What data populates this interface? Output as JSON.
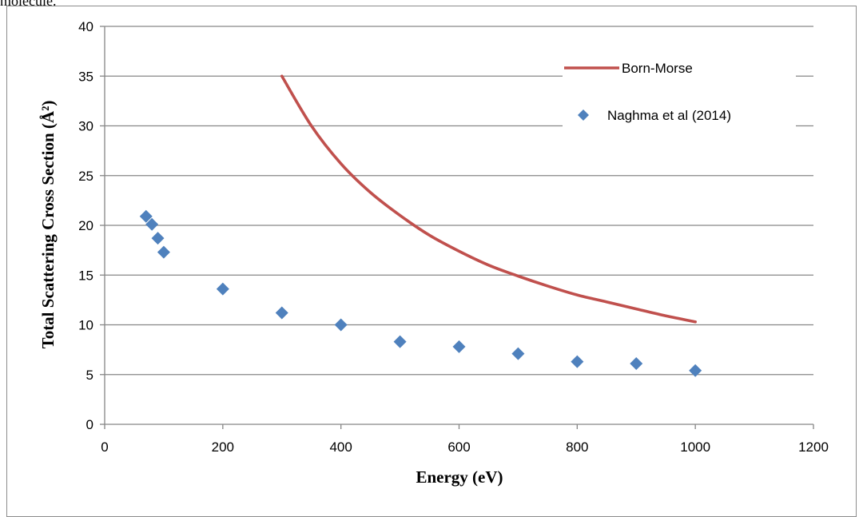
{
  "caption_fragment": "molecule.",
  "chart_data": {
    "type": "scatter",
    "xlabel": "Energy (eV)",
    "ylabel": "Total Scattering Cross Section (Å²)",
    "xlim": [
      0,
      1200
    ],
    "ylim": [
      0,
      40
    ],
    "xticks": [
      0,
      200,
      400,
      600,
      800,
      1000,
      1200
    ],
    "yticks": [
      0,
      5,
      10,
      15,
      20,
      25,
      30,
      35,
      40
    ],
    "grid": "horizontal",
    "legend_position": "top-right",
    "series": [
      {
        "name": "Born-Morse",
        "kind": "line",
        "color": "#c0504d",
        "x": [
          300,
          350,
          400,
          450,
          500,
          550,
          600,
          650,
          700,
          750,
          800,
          850,
          900,
          950,
          1000
        ],
        "y": [
          35,
          30,
          26.2,
          23.3,
          21,
          19,
          17.4,
          16,
          14.9,
          13.9,
          13,
          12.3,
          11.6,
          10.9,
          10.3
        ]
      },
      {
        "name": "Naghma et al (2014)",
        "kind": "scatter",
        "marker": "diamond",
        "color": "#4f81bd",
        "x": [
          70,
          80,
          90,
          100,
          200,
          300,
          400,
          500,
          600,
          700,
          800,
          900,
          1000
        ],
        "y": [
          20.9,
          20.1,
          18.7,
          17.3,
          13.6,
          11.2,
          10.0,
          8.3,
          7.8,
          7.1,
          6.3,
          6.1,
          5.4
        ]
      }
    ]
  }
}
